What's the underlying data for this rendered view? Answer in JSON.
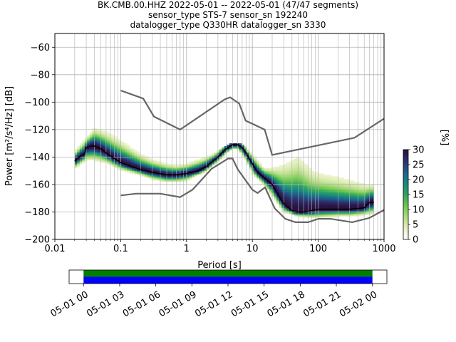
{
  "chart_data": {
    "type": "heatmap",
    "title_lines": [
      "BK.CMB.00.HHZ   2022-05-01 -- 2022-05-01  (47/47 segments)",
      "sensor_type STS-7 sensor_sn 192240",
      "datalogger_type Q330HR datalogger_sn 3330"
    ],
    "xlabel": "Period [s]",
    "ylabel": "Power [m²/s⁴/Hz] [dB]",
    "x_scale": "log",
    "xlim": [
      0.01,
      1000
    ],
    "ylim": [
      -200,
      -50
    ],
    "x_ticks": [
      {
        "value": 0.01,
        "label": "0.01"
      },
      {
        "value": 0.1,
        "label": "0.1"
      },
      {
        "value": 1,
        "label": "1"
      },
      {
        "value": 10,
        "label": "10"
      },
      {
        "value": 100,
        "label": "100"
      },
      {
        "value": 1000,
        "label": "1000"
      }
    ],
    "y_ticks": [
      {
        "value": -60,
        "label": "−60"
      },
      {
        "value": -80,
        "label": "−80"
      },
      {
        "value": -100,
        "label": "−100"
      },
      {
        "value": -120,
        "label": "−120"
      },
      {
        "value": -140,
        "label": "−140"
      },
      {
        "value": -160,
        "label": "−160"
      },
      {
        "value": -180,
        "label": "−180"
      },
      {
        "value": -200,
        "label": "−200"
      }
    ],
    "grid": true,
    "colorbar": {
      "label": "[%]",
      "range": [
        0,
        30
      ],
      "ticks": [
        {
          "value": 0,
          "label": "0"
        },
        {
          "value": 5,
          "label": "5"
        },
        {
          "value": 10,
          "label": "10"
        },
        {
          "value": 15,
          "label": "15"
        },
        {
          "value": 20,
          "label": "20"
        },
        {
          "value": 25,
          "label": "25"
        },
        {
          "value": 30,
          "label": "30"
        }
      ],
      "colors": [
        "#ffffff",
        "#e6f0c0",
        "#b0dc80",
        "#6cc94f",
        "#2fa45f",
        "#138a82",
        "#1f5f8a",
        "#2b2f6e",
        "#2a0f3c"
      ]
    },
    "mean_series": {
      "color": "#000000",
      "x": [
        0.02,
        0.022,
        0.025,
        0.028,
        0.03,
        0.035,
        0.04,
        0.05,
        0.06,
        0.08,
        0.1,
        0.15,
        0.2,
        0.3,
        0.5,
        0.7,
        1,
        1.5,
        2,
        2.5,
        3,
        4,
        5,
        6,
        7,
        8,
        10,
        12,
        15,
        20,
        25,
        30,
        40,
        50,
        60,
        80,
        100,
        150,
        200,
        300,
        500,
        600,
        700
      ],
      "y": [
        -143,
        -141,
        -139,
        -138,
        -133,
        -132,
        -132,
        -134,
        -137,
        -141,
        -144,
        -147,
        -149,
        -151,
        -153,
        -153,
        -152,
        -150,
        -147,
        -143,
        -140,
        -134,
        -131,
        -131,
        -133,
        -137,
        -145,
        -151,
        -155,
        -160,
        -168,
        -174,
        -179,
        -180,
        -180,
        -179,
        -178,
        -178,
        -178,
        -178,
        -177,
        -173,
        -173
      ]
    },
    "density_band": {
      "x": [
        0.02,
        0.03,
        0.04,
        0.06,
        0.1,
        0.2,
        0.3,
        0.5,
        0.7,
        1,
        2,
        3,
        4,
        5,
        6,
        8,
        10,
        15,
        20,
        30,
        50,
        80,
        100,
        200,
        300,
        500,
        700
      ],
      "y_low": [
        -148,
        -142,
        -142,
        -144,
        -149,
        -153,
        -156,
        -158,
        -158,
        -157,
        -150,
        -143,
        -137,
        -134,
        -134,
        -142,
        -152,
        -160,
        -168,
        -180,
        -183,
        -184,
        -184,
        -183,
        -183,
        -182,
        -181
      ],
      "y_high": [
        -136,
        -126,
        -119,
        -122,
        -128,
        -138,
        -142,
        -145,
        -146,
        -145,
        -140,
        -136,
        -132,
        -130,
        -130,
        -133,
        -138,
        -148,
        -148,
        -146,
        -140,
        -150,
        -152,
        -155,
        -157,
        -160,
        -160
      ]
    },
    "noise_models": [
      {
        "name": "NHNM",
        "color": "#666666",
        "x": [
          0.1,
          0.22,
          0.32,
          0.8,
          3.8,
          4.6,
          6.3,
          7.9,
          15.4,
          20,
          354.8,
          1000
        ],
        "y": [
          -91.5,
          -97.4,
          -110.5,
          -120,
          -98,
          -96.5,
          -101,
          -113.5,
          -120,
          -138.5,
          -126,
          -112
        ]
      },
      {
        "name": "NLNM",
        "color": "#666666",
        "x": [
          0.1,
          0.17,
          0.4,
          0.8,
          1.24,
          2.4,
          4.3,
          5,
          6,
          10,
          12,
          15.6,
          21.9,
          31.6,
          45,
          70,
          101,
          154,
          328,
          600,
          1000
        ],
        "y": [
          -168,
          -166.7,
          -166.7,
          -169.2,
          -163.7,
          -148.6,
          -141.1,
          -141.1,
          -149,
          -163.8,
          -166.2,
          -162.1,
          -177.5,
          -185,
          -187.5,
          -187.5,
          -185,
          -185,
          -187.5,
          -184.4,
          -178.5
        ]
      }
    ]
  },
  "timeline": {
    "tick_labels": [
      "05-01 00",
      "05-01 03",
      "05-01 06",
      "05-01 09",
      "05-01 12",
      "05-01 15",
      "05-01 18",
      "05-01 21",
      "05-02 00"
    ],
    "tick_hours": [
      0,
      3,
      6,
      9,
      12,
      15,
      18,
      21,
      24
    ],
    "range_hours": [
      -1.2,
      25.2
    ],
    "coverage_hours": [
      0,
      24
    ],
    "colors": {
      "top": "#008000",
      "bottom": "#0000ff"
    }
  }
}
